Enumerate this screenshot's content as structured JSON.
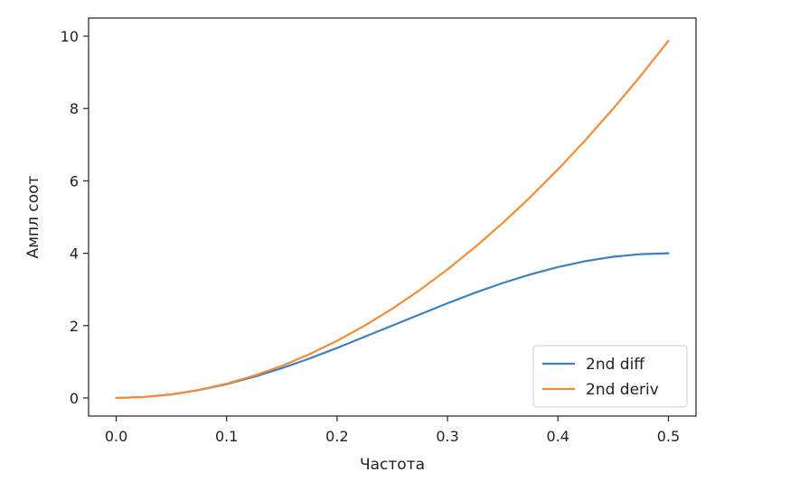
{
  "chart_data": {
    "type": "line",
    "xlabel": "Частота",
    "ylabel": "Ампл соот",
    "xlim": [
      -0.025,
      0.525
    ],
    "ylim": [
      -0.5,
      10.5
    ],
    "xticks": [
      0.0,
      0.1,
      0.2,
      0.3,
      0.4,
      0.5
    ],
    "xtick_labels": [
      "0.0",
      "0.1",
      "0.2",
      "0.3",
      "0.4",
      "0.5"
    ],
    "yticks": [
      0,
      2,
      4,
      6,
      8,
      10
    ],
    "ytick_labels": [
      "0",
      "2",
      "4",
      "6",
      "8",
      "10"
    ],
    "grid": false,
    "legend_position": "lower-right",
    "series": [
      {
        "name": "2nd diff",
        "color": "#3f7fbf",
        "x": [
          0.0,
          0.025,
          0.05,
          0.075,
          0.1,
          0.125,
          0.15,
          0.175,
          0.2,
          0.225,
          0.25,
          0.275,
          0.3,
          0.325,
          0.35,
          0.375,
          0.4,
          0.425,
          0.45,
          0.475,
          0.5
        ],
        "y": [
          0.0,
          0.025,
          0.098,
          0.218,
          0.382,
          0.586,
          0.824,
          1.09,
          1.382,
          1.691,
          2.0,
          2.309,
          2.618,
          2.91,
          3.176,
          3.414,
          3.618,
          3.782,
          3.902,
          3.975,
          4.0
        ]
      },
      {
        "name": "2nd deriv",
        "color": "#f28c38",
        "x": [
          0.0,
          0.025,
          0.05,
          0.075,
          0.1,
          0.125,
          0.15,
          0.175,
          0.2,
          0.225,
          0.25,
          0.275,
          0.3,
          0.325,
          0.35,
          0.375,
          0.4,
          0.425,
          0.45,
          0.475,
          0.5
        ],
        "y": [
          0.0,
          0.025,
          0.099,
          0.222,
          0.395,
          0.617,
          0.888,
          1.209,
          1.579,
          1.999,
          2.467,
          2.986,
          3.553,
          4.17,
          4.836,
          5.551,
          6.317,
          7.131,
          7.994,
          8.907,
          9.87
        ]
      }
    ]
  }
}
